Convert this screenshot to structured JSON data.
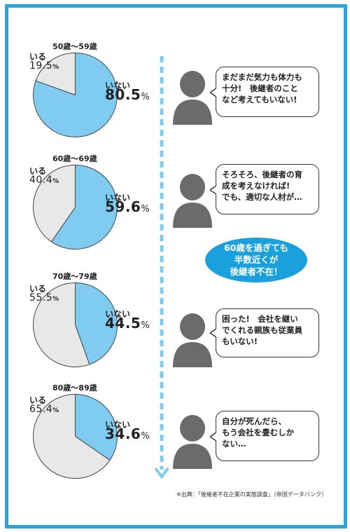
{
  "chart_data": [
    {
      "type": "pie",
      "title": "50歳～59歳",
      "labels": [
        "いる",
        "いない"
      ],
      "values": [
        19.5,
        80.5
      ],
      "colors": [
        "#e8e8e8",
        "#7fccf0"
      ]
    },
    {
      "type": "pie",
      "title": "60歳～69歳",
      "labels": [
        "いる",
        "いない"
      ],
      "values": [
        40.4,
        59.6
      ],
      "colors": [
        "#e8e8e8",
        "#7fccf0"
      ]
    },
    {
      "type": "pie",
      "title": "70歳～79歳",
      "labels": [
        "いる",
        "いない"
      ],
      "values": [
        55.5,
        44.5
      ],
      "colors": [
        "#e8e8e8",
        "#7fccf0"
      ]
    },
    {
      "type": "pie",
      "title": "80歳～89歳",
      "labels": [
        "いる",
        "いない"
      ],
      "values": [
        65.4,
        34.6
      ],
      "colors": [
        "#e8e8e8",
        "#7fccf0"
      ]
    }
  ],
  "pies": [
    {
      "age": "50歳～59歳",
      "iru_label": "いる",
      "iru_value": "19.5",
      "inai_label": "いない",
      "inai_value": "80.5",
      "pct": "%"
    },
    {
      "age": "60歳～69歳",
      "iru_label": "いる",
      "iru_value": "40.4",
      "inai_label": "いない",
      "inai_value": "59.6",
      "pct": "%"
    },
    {
      "age": "70歳～79歳",
      "iru_label": "いる",
      "iru_value": "55.5",
      "inai_label": "いない",
      "inai_value": "44.5",
      "pct": "%"
    },
    {
      "age": "80歳～89歳",
      "iru_label": "いる",
      "iru_value": "65.4",
      "inai_label": "いない",
      "inai_value": "34.6",
      "pct": "%"
    }
  ],
  "bubbles": [
    {
      "lines": [
        "まだまだ気力も体力も",
        "十分!　後継者のこと",
        "など考えてもいない!"
      ]
    },
    {
      "lines": [
        "そろそろ、後継者の育",
        "成を考えなければ!",
        "でも、適切な人材が…"
      ]
    },
    {
      "lines": [
        "困った!　会社を継い",
        "でくれる親族も従業員",
        "もいない!"
      ]
    },
    {
      "lines": [
        "自分が死んだら、",
        "もう会社を畳むしか",
        "ない…"
      ]
    }
  ],
  "callout": {
    "lines": [
      "60歳を過ぎても",
      "半数近くが",
      "後継者不在！"
    ]
  },
  "source": "※出典：「後継者不在企業の実態調査」（帝国データバンク）",
  "colors": {
    "accent": "#2aa3de",
    "pie_blue": "#7fccf0",
    "pie_gray": "#e8e8e8",
    "person": "#6b6b6b"
  }
}
